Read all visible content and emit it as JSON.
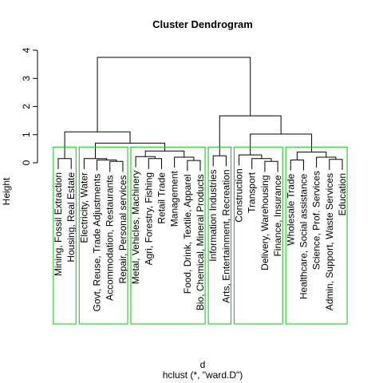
{
  "chart_data": {
    "type": "dendrogram",
    "title": "Cluster Dendrogram",
    "ylabel": "Height",
    "xlabel": "d",
    "subtitle": "hclust (*, \"ward.D\")",
    "labels": [
      "Mining, Fossil Extraction",
      "Housing, Real Estate",
      "Electricity, Water",
      "Govt, Reuse, Trade Adjustments",
      "Accommodation, Restaurants",
      "Repair, Personal services",
      "Metal, Vehicles, Machinery",
      "Agri, Forestry, Fishing",
      "Retail Trade",
      "Management",
      "Food, Drink, Textile, Apparel",
      "Bio, Chemical, Mineral Products",
      "Information Industries",
      "Arts, Entertainment, Recreation",
      "Construction",
      "Transport",
      "Delivery, Warehousing",
      "Finance, Insurance",
      "Wholesale Trade",
      "Healthcare, Social assistance",
      "Science, Prof. Services",
      "Admin, Support, Waste Services",
      "Education"
    ],
    "merge": [
      [
        -5,
        -6
      ],
      [
        -4,
        1
      ],
      [
        -3,
        2
      ],
      [
        -1,
        -2
      ],
      [
        -8,
        -9
      ],
      [
        -7,
        5
      ],
      [
        -11,
        -12
      ],
      [
        -10,
        7
      ],
      [
        6,
        8
      ],
      [
        3,
        9
      ],
      [
        4,
        10
      ],
      [
        -13,
        -14
      ],
      [
        -17,
        -18
      ],
      [
        -16,
        13
      ],
      [
        -15,
        14
      ],
      [
        -22,
        -23
      ],
      [
        -21,
        16
      ],
      [
        -19,
        -20
      ],
      [
        18,
        17
      ],
      [
        15,
        19
      ],
      [
        12,
        20
      ],
      [
        11,
        21
      ]
    ],
    "height": [
      0.05,
      0.1,
      0.15,
      0.15,
      0.15,
      0.22,
      0.08,
      0.2,
      0.42,
      0.7,
      1.1,
      0.25,
      0.05,
      0.15,
      0.28,
      0.12,
      0.2,
      0.1,
      0.38,
      1.02,
      1.67,
      3.75
    ],
    "ylim": [
      0,
      4
    ],
    "yticks": [
      0,
      1,
      2,
      3,
      4
    ],
    "color": "#000000",
    "rect_k": 6,
    "rect_color": "#00cc00"
  }
}
